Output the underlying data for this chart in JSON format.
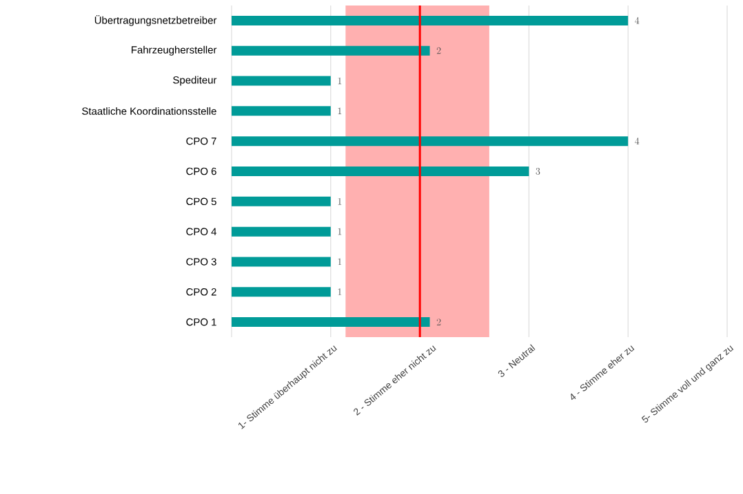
{
  "chart_data": {
    "type": "bar",
    "orientation": "horizontal",
    "categories": [
      "Übertragungsnetzbetreiber",
      "Fahrzeughersteller",
      "Spediteur",
      "Staatliche Koordinationsstelle",
      "CPO 7",
      "CPO 6",
      "CPO 5",
      "CPO 4",
      "CPO 3",
      "CPO 2",
      "CPO 1"
    ],
    "values": [
      4,
      2,
      1,
      1,
      4,
      3,
      1,
      1,
      1,
      1,
      2
    ],
    "color": "#009b98",
    "xlim": [
      0,
      5
    ],
    "xticks": [
      {
        "value": 0,
        "label": null
      },
      {
        "value": 1,
        "label": "1- Stimme überhaupt nicht zu"
      },
      {
        "value": 2,
        "label": "2 - Stimme eher nicht zu"
      },
      {
        "value": 3,
        "label": "3 - Neutral"
      },
      {
        "value": 4,
        "label": "4 - Stimme eher zu"
      },
      {
        "value": 5,
        "label": "5- Stimme voll und ganz zu"
      }
    ],
    "grid": "x",
    "data_labels": true,
    "ref_lines": [
      {
        "axis": "x",
        "value": 1.9,
        "color": "#ff0000"
      }
    ],
    "bands": [
      {
        "axis": "x",
        "from": 1.15,
        "to": 2.6,
        "color": "#ffb0b0"
      }
    ]
  }
}
